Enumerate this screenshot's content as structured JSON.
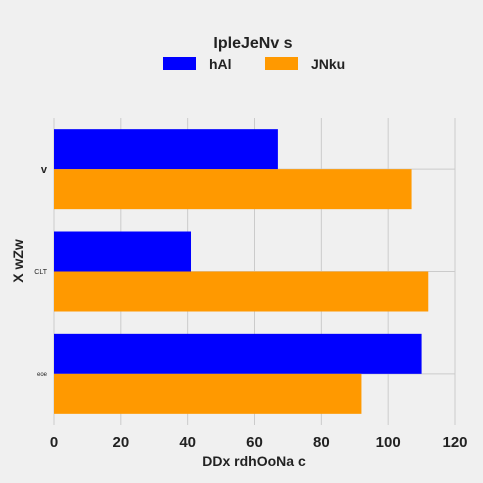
{
  "chart_data": {
    "type": "bar",
    "orientation": "horizontal",
    "title": "IpleJeNv s",
    "xlabel": "DDx rdhOoNa c",
    "ylabel": "X wZw",
    "categories": [
      "v",
      "CLT",
      "eoe"
    ],
    "series": [
      {
        "name": "hAl",
        "color": "#0000ff",
        "values": [
          67,
          41,
          110
        ]
      },
      {
        "name": "JNku",
        "color": "#ff9900",
        "values": [
          107,
          112,
          92
        ]
      }
    ],
    "xlim": [
      0,
      120
    ],
    "xticks": [
      0,
      20,
      40,
      60,
      80,
      100,
      120
    ],
    "grid": true,
    "legend_position": "top"
  },
  "colors": {
    "background": "#f0f0f0",
    "grid": "#cbcbcb",
    "text": "#222222"
  }
}
